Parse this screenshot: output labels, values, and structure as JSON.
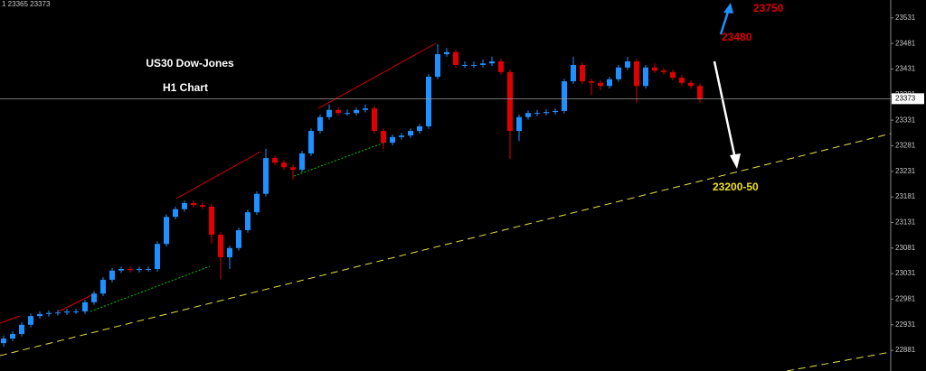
{
  "header": "1 23365 23373",
  "chart_data": {
    "type": "candlestick",
    "title": "US30 Dow-Jones",
    "subtitle": "H1 Chart",
    "up_color": "#1e90ff",
    "down_color": "#e00000",
    "grid": false,
    "ylim": [
      22860,
      23566
    ],
    "yticks": [
      22881,
      22931,
      22981,
      23031,
      23081,
      23131,
      23181,
      23231,
      23281,
      23331,
      23381,
      23431,
      23481,
      23531
    ],
    "last_price": 23373,
    "annotations": [
      "23750",
      "23480",
      "23200-50"
    ],
    "open": [
      22895,
      22904,
      22913,
      22931,
      22948,
      22952,
      22954,
      22955,
      22957,
      22957,
      22975,
      22992,
      23019,
      23037,
      23040,
      23038,
      23040,
      23040,
      23089,
      23142,
      23157,
      23169,
      23165,
      23162,
      23107,
      23063,
      23081,
      23116,
      23151,
      23187,
      23257,
      23248,
      23239,
      23234,
      23266,
      23310,
      23337,
      23351,
      23345,
      23345,
      23351,
      23354,
      23310,
      23287,
      23298,
      23301,
      23310,
      23319,
      23416,
      23460,
      23464,
      23439,
      23439,
      23439,
      23442,
      23446,
      23425,
      23310,
      23337,
      23345,
      23345,
      23347,
      23349,
      23407,
      23439,
      23407,
      23404,
      23398,
      23411,
      23434,
      23446,
      23398,
      23434,
      23428,
      23425,
      23414,
      23404,
      23398
    ],
    "close": [
      22904,
      22913,
      22931,
      22948,
      22952,
      22954,
      22955,
      22957,
      22957,
      22975,
      22992,
      23019,
      23037,
      23040,
      23038,
      23040,
      23040,
      23089,
      23142,
      23157,
      23169,
      23165,
      23162,
      23107,
      23063,
      23081,
      23116,
      23151,
      23187,
      23257,
      23248,
      23239,
      23234,
      23266,
      23310,
      23337,
      23351,
      23345,
      23345,
      23351,
      23354,
      23310,
      23287,
      23298,
      23301,
      23310,
      23319,
      23416,
      23460,
      23464,
      23439,
      23439,
      23439,
      23442,
      23446,
      23425,
      23310,
      23337,
      23345,
      23345,
      23347,
      23349,
      23407,
      23439,
      23407,
      23404,
      23398,
      23411,
      23434,
      23446,
      23398,
      23434,
      23428,
      23425,
      23414,
      23404,
      23398,
      23372
    ],
    "high": [
      22910,
      22918,
      22936,
      22953,
      22957,
      22959,
      22960,
      22962,
      22962,
      22980,
      22997,
      23024,
      23042,
      23045,
      23045,
      23045,
      23045,
      23094,
      23147,
      23162,
      23174,
      23174,
      23170,
      23167,
      23112,
      23086,
      23121,
      23156,
      23192,
      23275,
      23262,
      23253,
      23244,
      23271,
      23315,
      23342,
      23362,
      23356,
      23352,
      23356,
      23362,
      23359,
      23315,
      23303,
      23306,
      23315,
      23324,
      23421,
      23480,
      23472,
      23469,
      23446,
      23446,
      23450,
      23455,
      23451,
      23430,
      23342,
      23350,
      23351,
      23352,
      23354,
      23412,
      23455,
      23444,
      23412,
      23409,
      23416,
      23439,
      23455,
      23451,
      23439,
      23442,
      23433,
      23430,
      23419,
      23409,
      23403
    ],
    "low": [
      22888,
      22899,
      22908,
      22926,
      22943,
      22947,
      22949,
      22950,
      22952,
      22952,
      22970,
      22987,
      23014,
      23032,
      23033,
      23033,
      23035,
      23035,
      23084,
      23137,
      23152,
      23160,
      23157,
      23090,
      23020,
      23040,
      23076,
      23111,
      23146,
      23182,
      23243,
      23234,
      23215,
      23229,
      23261,
      23305,
      23332,
      23340,
      23340,
      23340,
      23346,
      23305,
      23275,
      23282,
      23293,
      23296,
      23305,
      23314,
      23411,
      23455,
      23434,
      23433,
      23433,
      23434,
      23437,
      23420,
      23255,
      23290,
      23332,
      23339,
      23340,
      23342,
      23344,
      23402,
      23402,
      23380,
      23390,
      23393,
      23406,
      23429,
      23365,
      23393,
      23423,
      23420,
      23409,
      23399,
      23393,
      23365
    ]
  }
}
